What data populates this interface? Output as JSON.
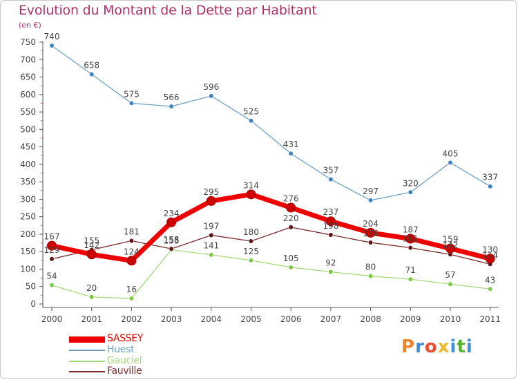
{
  "chart_data": {
    "type": "line",
    "title": "Evolution du Montant de la Dette par Habitant",
    "subtitle": "(en €)",
    "categories": [
      "2000",
      "2001",
      "2002",
      "2003",
      "2004",
      "2005",
      "2006",
      "2007",
      "2008",
      "2009",
      "2010",
      "2011"
    ],
    "ylim": [
      0,
      750
    ],
    "yticks": [
      0,
      50,
      100,
      150,
      200,
      250,
      300,
      350,
      400,
      450,
      500,
      550,
      600,
      650,
      700,
      750
    ],
    "grid": false,
    "legend_position": "bottom-left",
    "series": [
      {
        "name": "Huest",
        "color": "#6fa0c8",
        "marker": "#3e82be",
        "values": [
          740,
          658,
          575,
          566,
          596,
          525,
          431,
          357,
          297,
          320,
          405,
          337
        ]
      },
      {
        "name": "Gauciel",
        "color": "#a6d97a",
        "marker": "#7ec845",
        "values": [
          54,
          20,
          16,
          155,
          141,
          125,
          105,
          92,
          80,
          71,
          57,
          43
        ]
      },
      {
        "name": "Fauville",
        "color": "#7a2a2a",
        "marker": "#5c1414",
        "values": [
          129,
          155,
          181,
          158,
          197,
          180,
          220,
          198,
          176,
          161,
          142,
          114
        ]
      },
      {
        "name": "SASSEY",
        "color": "#ee0000",
        "marker": "#cc0000",
        "values": [
          167,
          142,
          124,
          234,
          295,
          314,
          276,
          237,
          204,
          187,
          159,
          130
        ]
      }
    ],
    "legend_order": [
      "SASSEY",
      "Huest",
      "Gauciel",
      "Fauville"
    ]
  },
  "logo": {
    "text": "Proxiti",
    "colors": [
      "#e8842a",
      "#3a8fd0",
      "#ea4a2e",
      "#f0b82a",
      "#3a8fd0",
      "#5ab030",
      "#3a8fd0"
    ]
  }
}
